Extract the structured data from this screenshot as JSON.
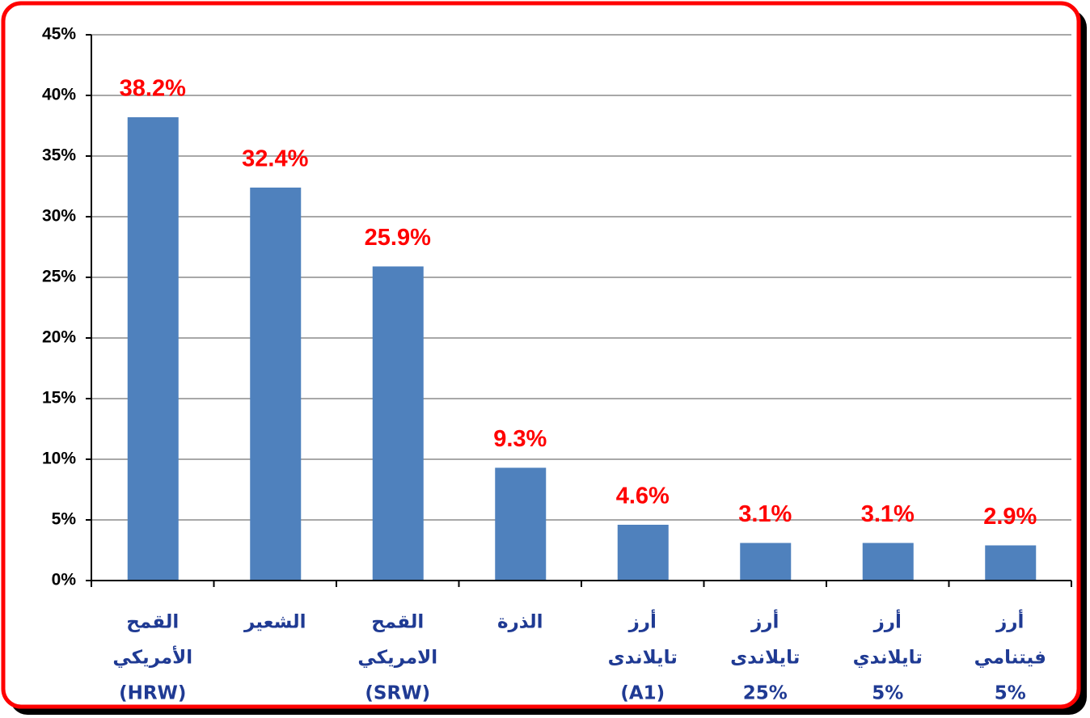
{
  "chart_data": {
    "type": "bar",
    "categories": [
      [
        "القمح",
        "الأمريكي",
        "(HRW)"
      ],
      [
        "الشعير"
      ],
      [
        "القمح",
        "الامريكي",
        "(SRW)"
      ],
      [
        "الذرة"
      ],
      [
        "أرز",
        "تايلاندى",
        "(A1)"
      ],
      [
        "أرز",
        "تايلاندى",
        "25%"
      ],
      [
        "أرز",
        "تايلاندي",
        "5%"
      ],
      [
        "أرز",
        "فيتنامي",
        "5%"
      ]
    ],
    "values": [
      38.2,
      32.4,
      25.9,
      9.3,
      4.6,
      3.1,
      3.1,
      2.9
    ],
    "value_labels": [
      "38.2%",
      "32.4%",
      "25.9%",
      "9.3%",
      "4.6%",
      "3.1%",
      "3.1%",
      "2.9%"
    ],
    "color": "#4f81bd",
    "ylim": [
      0,
      45
    ],
    "yticks": [
      {
        "value": 0,
        "label": "0%"
      },
      {
        "value": 5,
        "label": "5%"
      },
      {
        "value": 10,
        "label": "10%"
      },
      {
        "value": 15,
        "label": "15%"
      },
      {
        "value": 20,
        "label": "20%"
      },
      {
        "value": 25,
        "label": "25%"
      },
      {
        "value": 30,
        "label": "30%"
      },
      {
        "value": 35,
        "label": "35%"
      },
      {
        "value": 40,
        "label": "40%"
      },
      {
        "value": 45,
        "label": "45%"
      }
    ],
    "grid": true
  }
}
